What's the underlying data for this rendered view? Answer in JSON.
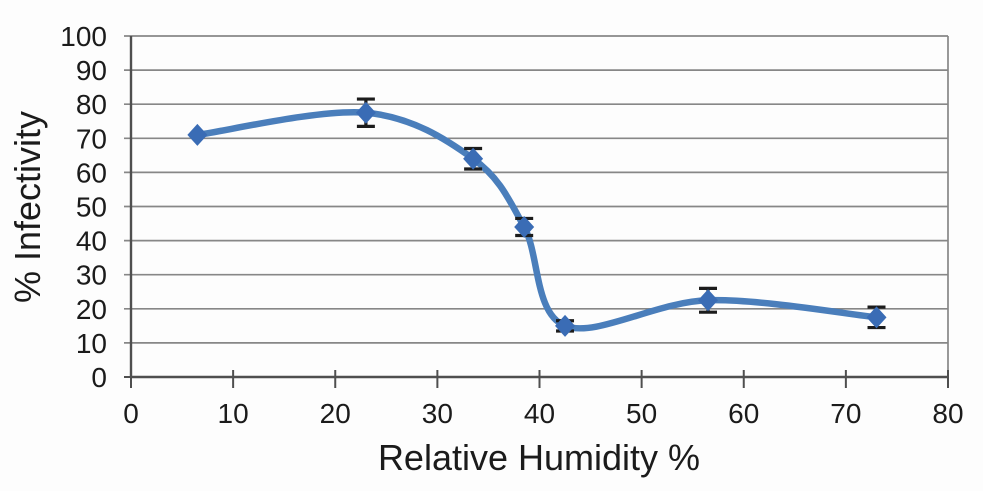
{
  "chart_data": {
    "type": "line",
    "title": "",
    "xlabel": "Relative Humidity %",
    "ylabel": "% Infectivity",
    "x": [
      6.5,
      23,
      33.5,
      38.5,
      42.5,
      56.5,
      73
    ],
    "y": [
      71,
      77.5,
      64,
      44,
      15,
      22.5,
      17.5
    ],
    "y_err": [
      0,
      4,
      3,
      2.5,
      1.5,
      3.5,
      3
    ],
    "xlim": [
      0,
      80
    ],
    "ylim": [
      0,
      100
    ],
    "xtick_step": 10,
    "ytick_step": 10,
    "xtick_labels": [
      "0",
      "10",
      "20",
      "30",
      "40",
      "50",
      "60",
      "70",
      "80"
    ],
    "ytick_labels": [
      "0",
      "10",
      "20",
      "30",
      "40",
      "50",
      "60",
      "70",
      "80",
      "90",
      "100"
    ],
    "grid": "horizontal",
    "legend": "none",
    "smooth": true,
    "marker": "diamond",
    "error_bars": "vertical-with-caps",
    "colors": {
      "line": "#4a7ebb",
      "marker": "#3a6cb5",
      "error_bar": "#1c1c1c",
      "gridline": "#878787",
      "axis": "#4f4f4f",
      "text": "#1b1b1b",
      "background": "#fdfdfd"
    }
  }
}
